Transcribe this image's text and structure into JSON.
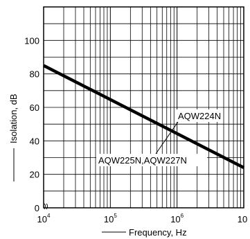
{
  "chart_data": {
    "type": "line",
    "xlabel": "Frequency, Hz",
    "ylabel": "Isolation, dB",
    "x_scale": "log",
    "xlim": [
      10000,
      10000000
    ],
    "ylim": [
      0,
      120
    ],
    "x_ticks": [
      {
        "base": "10",
        "exp": "4",
        "value": 10000
      },
      {
        "base": "10",
        "exp": "5",
        "value": 100000
      },
      {
        "base": "10",
        "exp": "6",
        "value": 1000000
      },
      {
        "base": "10",
        "exp": "",
        "value": 10000000
      }
    ],
    "y_ticks": [
      "0",
      "20",
      "40",
      "60",
      "80",
      "100"
    ],
    "y_tick_values": [
      0,
      20,
      40,
      60,
      80,
      100
    ],
    "grid": true,
    "series": [
      {
        "x": [
          10000,
          10000000
        ],
        "y": [
          85,
          24
        ],
        "color": "#000000"
      }
    ],
    "annotations": [
      {
        "text": "AQW224N",
        "x": 1000000,
        "y": 46
      },
      {
        "text": "AQW225N,AQW227N",
        "x": 1000000,
        "y": 46
      }
    ]
  }
}
